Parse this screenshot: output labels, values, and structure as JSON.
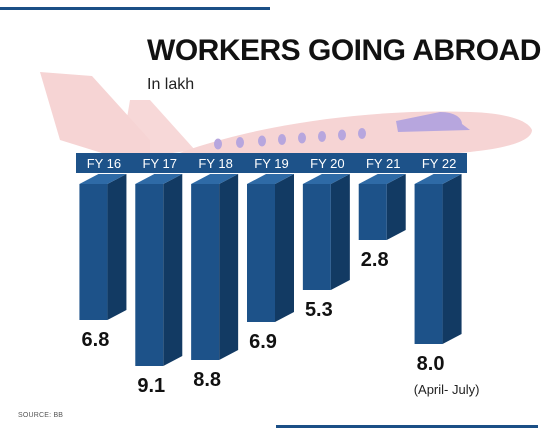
{
  "title": "WORKERS GOING ABROAD",
  "subtitle": "In lakh",
  "source": "SOURCE: BB",
  "colors": {
    "bar_front": "#1d5289",
    "bar_side": "#123a63",
    "bar_top": "#2e6aa6",
    "timeline_band": "#1d5289",
    "rule": "#1b4f86",
    "plane_body": "#f6d4d4",
    "plane_accent": "#b7a6de"
  },
  "chart_data": {
    "type": "bar",
    "title": "WORKERS GOING ABROAD",
    "units": "In lakh",
    "categories": [
      "FY 16",
      "FY 17",
      "FY 18",
      "FY 19",
      "FY 20",
      "FY 21",
      "FY 22"
    ],
    "values": [
      6.8,
      9.1,
      8.8,
      6.9,
      5.3,
      2.8,
      8.0
    ],
    "value_labels": [
      "6.8",
      "9.1",
      "8.8",
      "6.9",
      "5.3",
      "2.8",
      "8.0"
    ],
    "annotations": [
      {
        "category": "FY 22",
        "text": "(April- July)"
      }
    ],
    "orientation": "bars hang downward from the category band",
    "grid": false,
    "legend": "none",
    "ylim": [
      0,
      9.1
    ]
  }
}
